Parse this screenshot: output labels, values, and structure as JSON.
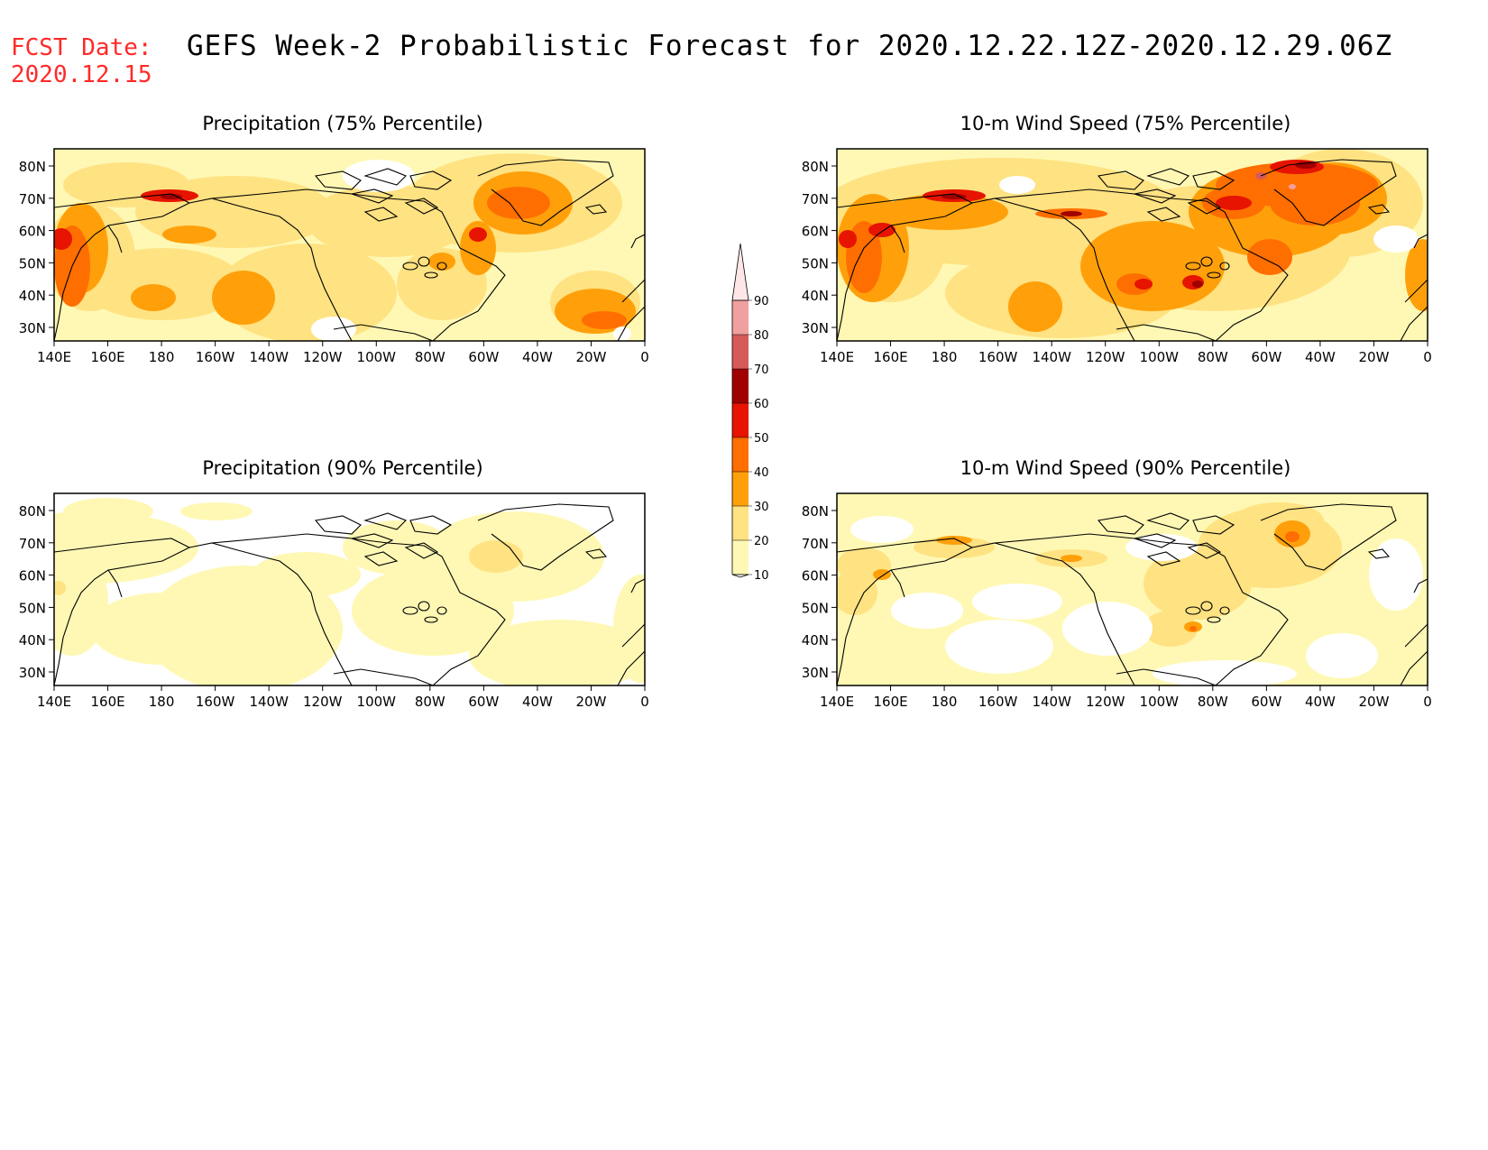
{
  "header": {
    "fcst_label": "FCST Date:",
    "fcst_date": "2020.12.15",
    "title": "GEFS Week-2 Probabilistic Forecast for 2020.12.22.12Z-2020.12.29.06Z"
  },
  "axes": {
    "lat_ticks": [
      "80N",
      "70N",
      "60N",
      "50N",
      "40N",
      "30N"
    ],
    "lon_ticks": [
      "140E",
      "160E",
      "180",
      "160W",
      "140W",
      "120W",
      "100W",
      "80W",
      "60W",
      "40W",
      "20W",
      "0"
    ]
  },
  "colors": {
    "c10": "#fff8b4",
    "c20": "#ffe282",
    "c30": "#ffa00a",
    "c40": "#ff6e00",
    "c50": "#e61400",
    "c60": "#a00000",
    "c70": "#d75a5a",
    "c80": "#f0a0a0",
    "c90": "#ffe6e6"
  },
  "legend": {
    "levels": [
      "10",
      "20",
      "30",
      "40",
      "50",
      "60",
      "70",
      "80",
      "90"
    ]
  },
  "panels": [
    {
      "id": "precip75",
      "title": "Precipitation (75% Percentile)"
    },
    {
      "id": "wind75",
      "title": "10-m Wind Speed (75% Percentile)"
    },
    {
      "id": "precip90",
      "title": "Precipitation (90% Percentile)"
    },
    {
      "id": "wind90",
      "title": "10-m Wind Speed (90% Percentile)"
    }
  ]
}
